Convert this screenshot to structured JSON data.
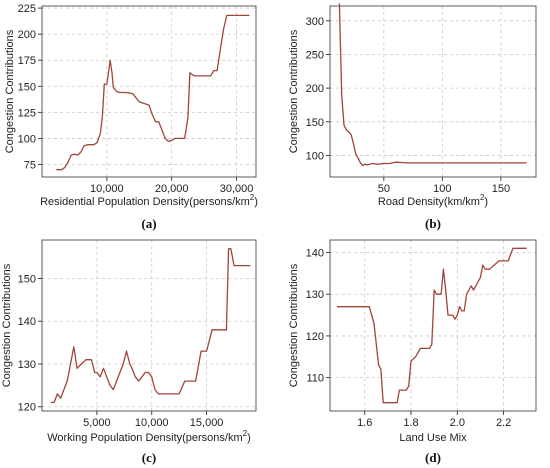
{
  "chart_data": [
    {
      "type": "line",
      "panel_label": "(a)",
      "xlabel": "Residential Population Density(persons/km",
      "xlabel_sup": "2",
      "xlabel_suffix": ")",
      "ylabel": "Congestion Contributions",
      "xlim": [
        0,
        33000
      ],
      "ylim": [
        63,
        227
      ],
      "xticks": [
        10000,
        20000,
        30000
      ],
      "xtick_labels": [
        "10,000",
        "20,000",
        "30,000"
      ],
      "yticks": [
        75,
        100,
        125,
        150,
        175,
        200,
        225
      ],
      "ytick_labels": [
        "75",
        "100",
        "125",
        "150",
        "175",
        "200",
        "225"
      ],
      "grid": true,
      "color": "#a0453a",
      "x": [
        2200,
        3000,
        3500,
        4000,
        4500,
        5000,
        5500,
        6000,
        6500,
        7000,
        7500,
        8000,
        8500,
        9000,
        9300,
        9600,
        10000,
        10200,
        10500,
        10800,
        11000,
        11500,
        12000,
        13000,
        14000,
        14500,
        15000,
        16000,
        16500,
        17000,
        17500,
        18000,
        18500,
        19000,
        19500,
        20000,
        20500,
        21000,
        21500,
        22000,
        22500,
        22800,
        23000,
        23500,
        24000,
        25000,
        26000,
        26500,
        27000,
        27500,
        28000,
        28500,
        29000,
        30000,
        31000,
        32000
      ],
      "y": [
        70,
        70,
        72,
        77,
        84,
        85,
        84,
        87,
        93,
        94,
        94,
        94,
        96,
        105,
        120,
        152,
        152,
        160,
        175,
        163,
        149,
        145,
        144,
        144,
        143,
        139,
        135,
        133,
        132,
        123,
        116,
        116,
        108,
        100,
        97,
        98,
        100,
        100,
        100,
        100,
        120,
        163,
        162,
        160,
        160,
        160,
        160,
        165,
        165,
        185,
        205,
        218,
        218,
        218,
        218,
        218
      ]
    },
    {
      "type": "line",
      "panel_label": "(b)",
      "xlabel": "Road Density(km/km",
      "xlabel_sup": "2",
      "xlabel_suffix": ")",
      "ylabel": "Congestion Contributions",
      "xlim": [
        4,
        180
      ],
      "ylim": [
        68,
        322
      ],
      "xticks": [
        50,
        100,
        150
      ],
      "xtick_labels": [
        "50",
        "100",
        "150"
      ],
      "yticks": [
        100,
        150,
        200,
        250,
        300
      ],
      "ytick_labels": [
        "100",
        "150",
        "200",
        "250",
        "300"
      ],
      "grid": true,
      "color": "#a0453a",
      "x": [
        12,
        14,
        16,
        18,
        20,
        22,
        24,
        26,
        28,
        30,
        32,
        34,
        36,
        38,
        40,
        45,
        50,
        55,
        60,
        70,
        80,
        100,
        120,
        150,
        172
      ],
      "y": [
        326,
        190,
        145,
        138,
        135,
        131,
        118,
        102,
        96,
        89,
        85,
        87,
        86,
        87,
        88,
        87,
        88,
        88,
        90,
        89,
        89,
        89,
        89,
        89,
        89
      ]
    },
    {
      "type": "line",
      "panel_label": "(c)",
      "xlabel": "Working Population Density(persons/km",
      "xlabel_sup": "2",
      "xlabel_suffix": ")",
      "ylabel": "Congestion Contributions",
      "xlim": [
        0,
        19500
      ],
      "ylim": [
        119,
        159
      ],
      "xticks": [
        5000,
        10000,
        15000
      ],
      "xtick_labels": [
        "5,000",
        "10,000",
        "15,000"
      ],
      "yticks": [
        120,
        130,
        140,
        150
      ],
      "ytick_labels": [
        "120",
        "130",
        "140",
        "150"
      ],
      "grid": true,
      "color": "#a0453a",
      "x": [
        800,
        1100,
        1400,
        1700,
        2000,
        2300,
        2600,
        2900,
        3200,
        3600,
        4000,
        4500,
        4800,
        5000,
        5300,
        5600,
        5900,
        6200,
        6500,
        6800,
        7100,
        7400,
        7700,
        8000,
        8200,
        8500,
        8800,
        9100,
        9400,
        9700,
        10000,
        10300,
        10600,
        11000,
        11500,
        12000,
        12500,
        13000,
        13500,
        14000,
        14500,
        15000,
        15500,
        16000,
        16500,
        16800,
        17000,
        17200,
        17500,
        18000,
        18500,
        19000
      ],
      "y": [
        121,
        121,
        123,
        122,
        124,
        126,
        130,
        134,
        129,
        130,
        131,
        131,
        128,
        128,
        127,
        129,
        127,
        125,
        124,
        126,
        128,
        130,
        133,
        130,
        129,
        127,
        126,
        127,
        128,
        128,
        127,
        124,
        123,
        123,
        123,
        123,
        123,
        126,
        126,
        126,
        133,
        133,
        138,
        138,
        138,
        138,
        157,
        157,
        153,
        153,
        153,
        153
      ]
    },
    {
      "type": "line",
      "panel_label": "(d)",
      "xlabel": "Land Use Mix",
      "xlabel_sup": "",
      "xlabel_suffix": "",
      "ylabel": "Congestion Contributions",
      "xlim": [
        1.45,
        2.34
      ],
      "ylim": [
        102,
        143
      ],
      "xticks": [
        1.6,
        1.8,
        2.0,
        2.2
      ],
      "xtick_labels": [
        "1.6",
        "1.8",
        "2.0",
        "2.2"
      ],
      "yticks": [
        110,
        120,
        130,
        140
      ],
      "ytick_labels": [
        "110",
        "120",
        "130",
        "140"
      ],
      "grid": true,
      "color": "#a0453a",
      "x": [
        1.48,
        1.52,
        1.56,
        1.6,
        1.62,
        1.64,
        1.66,
        1.67,
        1.68,
        1.69,
        1.7,
        1.72,
        1.74,
        1.75,
        1.76,
        1.78,
        1.79,
        1.8,
        1.82,
        1.84,
        1.86,
        1.88,
        1.89,
        1.9,
        1.91,
        1.92,
        1.93,
        1.94,
        1.95,
        1.96,
        1.97,
        1.98,
        1.99,
        2.0,
        2.01,
        2.02,
        2.03,
        2.04,
        2.05,
        2.06,
        2.07,
        2.08,
        2.1,
        2.11,
        2.12,
        2.13,
        2.14,
        2.16,
        2.18,
        2.2,
        2.22,
        2.24,
        2.3
      ],
      "y": [
        127,
        127,
        127,
        127,
        127,
        123,
        113,
        112,
        104,
        104,
        104,
        104,
        104,
        107,
        107,
        107,
        108,
        114,
        115,
        117,
        117,
        117,
        118,
        131,
        130,
        130,
        130,
        136,
        131,
        125,
        125,
        125,
        124,
        125,
        127,
        126,
        126,
        130,
        131,
        132,
        131,
        132,
        134,
        137,
        136,
        136,
        136,
        137,
        138,
        138,
        138,
        141,
        141
      ]
    }
  ]
}
